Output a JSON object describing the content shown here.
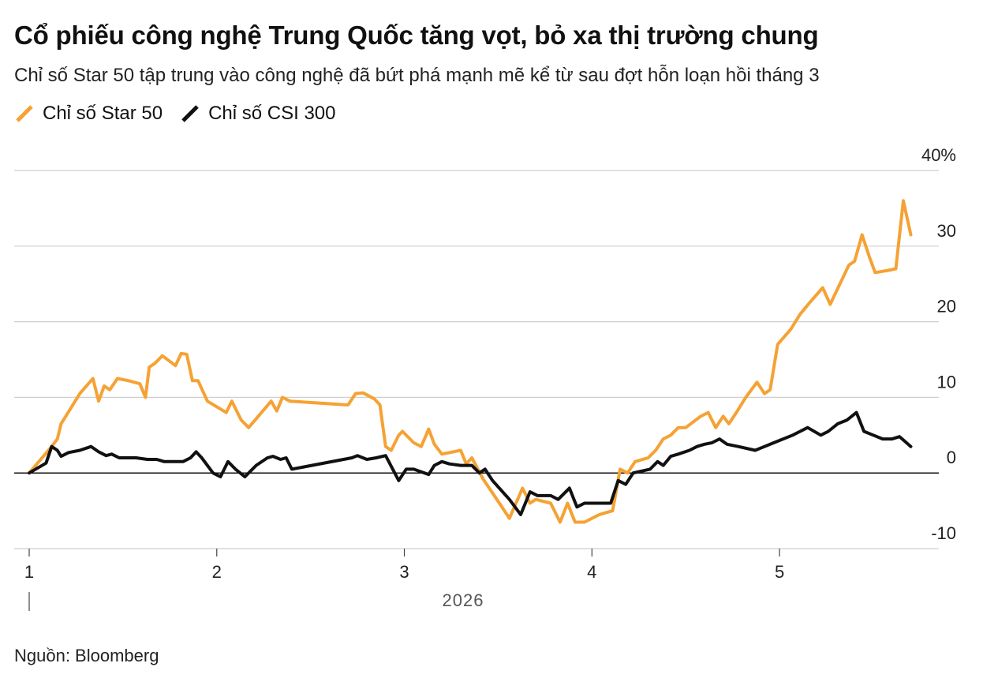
{
  "header": {
    "title": "Cổ phiếu công nghệ Trung Quốc tăng vọt, bỏ xa thị trường chung",
    "subtitle": "Chỉ số Star 50 tập trung vào công nghệ đã bứt phá mạnh mẽ kể từ sau đợt hỗn loạn hồi tháng 3"
  },
  "legend": {
    "star50": "Chỉ số Star 50",
    "csi300": "Chỉ số CSI 300"
  },
  "source": "Nguồn: Bloomberg",
  "colors": {
    "star50": "#f5a235",
    "csi300": "#111111",
    "grid": "#cfcfcf",
    "zero": "#111111"
  },
  "chart_data": {
    "type": "line",
    "title": "Cổ phiếu công nghệ Trung Quốc tăng vọt, bỏ xa thị trường chung",
    "xlabel": "2026",
    "ylabel": "",
    "x_range": [
      1.0,
      5.66
    ],
    "ylim": [
      -10,
      40
    ],
    "y_ticks": [
      40,
      30,
      20,
      10,
      0,
      -10
    ],
    "y_tick_labels": [
      "40%",
      "30",
      "20",
      "10",
      "0",
      "-10"
    ],
    "x_ticks": [
      1,
      2,
      3,
      4,
      5
    ],
    "x_tick_labels": [
      "1",
      "2",
      "3",
      "4",
      "5"
    ],
    "year_label": "2026",
    "grid": true,
    "legend_position": "top-left",
    "series": [
      {
        "name": "Chỉ số Star 50",
        "color": "#f5a235",
        "points": [
          [
            1.0,
            0
          ],
          [
            1.12,
            3.5
          ],
          [
            1.15,
            4.5
          ],
          [
            1.17,
            6.5
          ],
          [
            1.22,
            8.5
          ],
          [
            1.27,
            10.5
          ],
          [
            1.34,
            12.5
          ],
          [
            1.37,
            9.5
          ],
          [
            1.4,
            11.5
          ],
          [
            1.43,
            11
          ],
          [
            1.47,
            12.5
          ],
          [
            1.53,
            12.2
          ],
          [
            1.59,
            11.8
          ],
          [
            1.62,
            10
          ],
          [
            1.64,
            14
          ],
          [
            1.67,
            14.5
          ],
          [
            1.71,
            15.5
          ],
          [
            1.78,
            14.2
          ],
          [
            1.81,
            15.8
          ],
          [
            1.84,
            15.7
          ],
          [
            1.87,
            12.2
          ],
          [
            1.9,
            12.2
          ],
          [
            1.95,
            9.5
          ],
          [
            2.05,
            8
          ],
          [
            2.08,
            9.5
          ],
          [
            2.13,
            7
          ],
          [
            2.17,
            6
          ],
          [
            2.29,
            9.5
          ],
          [
            2.32,
            8.2
          ],
          [
            2.35,
            10
          ],
          [
            2.39,
            9.5
          ],
          [
            2.7,
            9
          ],
          [
            2.74,
            10.5
          ],
          [
            2.78,
            10.6
          ],
          [
            2.84,
            9.8
          ],
          [
            2.87,
            9
          ],
          [
            2.9,
            3.5
          ],
          [
            2.93,
            3
          ],
          [
            2.97,
            5
          ],
          [
            2.99,
            5.5
          ],
          [
            3.05,
            4
          ],
          [
            3.09,
            3.5
          ],
          [
            3.13,
            5.8
          ],
          [
            3.16,
            3.8
          ],
          [
            3.2,
            2.5
          ],
          [
            3.3,
            3
          ],
          [
            3.33,
            1.2
          ],
          [
            3.36,
            2
          ],
          [
            3.42,
            -0.8
          ],
          [
            3.52,
            -4.5
          ],
          [
            3.56,
            -6
          ],
          [
            3.63,
            -2
          ],
          [
            3.67,
            -4
          ],
          [
            3.7,
            -3.5
          ],
          [
            3.78,
            -4
          ],
          [
            3.83,
            -6.5
          ],
          [
            3.87,
            -4
          ],
          [
            3.91,
            -6.5
          ],
          [
            3.96,
            -6.5
          ],
          [
            4.04,
            -5.5
          ],
          [
            4.11,
            -5
          ],
          [
            4.15,
            0.5
          ],
          [
            4.19,
            0
          ],
          [
            4.23,
            1.5
          ],
          [
            4.3,
            2
          ],
          [
            4.34,
            3
          ],
          [
            4.38,
            4.5
          ],
          [
            4.42,
            5
          ],
          [
            4.46,
            6
          ],
          [
            4.5,
            6
          ],
          [
            4.58,
            7.5
          ],
          [
            4.62,
            8
          ],
          [
            4.66,
            6
          ],
          [
            4.7,
            7.5
          ],
          [
            4.73,
            6.5
          ],
          [
            4.77,
            8
          ],
          [
            4.82,
            10
          ],
          [
            4.88,
            12
          ],
          [
            4.92,
            10.5
          ],
          [
            4.95,
            11
          ],
          [
            4.99,
            17
          ],
          [
            5.06,
            19
          ],
          [
            5.11,
            21
          ],
          [
            5.16,
            22.5
          ],
          [
            5.23,
            24.5
          ],
          [
            5.27,
            22.3
          ],
          [
            5.37,
            27.5
          ],
          [
            5.4,
            28
          ],
          [
            5.44,
            31.5
          ],
          [
            5.48,
            28.5
          ],
          [
            5.51,
            26.5
          ],
          [
            5.58,
            26.8
          ],
          [
            5.62,
            27
          ],
          [
            5.66,
            36
          ],
          [
            5.7,
            31.5
          ]
        ]
      },
      {
        "name": "Chỉ số CSI 300",
        "color": "#111111",
        "points": [
          [
            1.0,
            0
          ],
          [
            1.09,
            1.3
          ],
          [
            1.12,
            3.5
          ],
          [
            1.15,
            3
          ],
          [
            1.17,
            2.2
          ],
          [
            1.21,
            2.7
          ],
          [
            1.27,
            3
          ],
          [
            1.33,
            3.5
          ],
          [
            1.37,
            2.8
          ],
          [
            1.41,
            2.3
          ],
          [
            1.44,
            2.5
          ],
          [
            1.48,
            2
          ],
          [
            1.57,
            2
          ],
          [
            1.63,
            1.8
          ],
          [
            1.68,
            1.8
          ],
          [
            1.72,
            1.5
          ],
          [
            1.82,
            1.5
          ],
          [
            1.86,
            2
          ],
          [
            1.89,
            2.8
          ],
          [
            1.92,
            2
          ],
          [
            1.98,
            0
          ],
          [
            2.02,
            -0.5
          ],
          [
            2.06,
            1.5
          ],
          [
            2.1,
            0.5
          ],
          [
            2.15,
            -0.5
          ],
          [
            2.21,
            1
          ],
          [
            2.27,
            2
          ],
          [
            2.3,
            2.2
          ],
          [
            2.34,
            1.8
          ],
          [
            2.37,
            2
          ],
          [
            2.4,
            0.5
          ],
          [
            2.72,
            2
          ],
          [
            2.75,
            2.3
          ],
          [
            2.8,
            1.8
          ],
          [
            2.85,
            2
          ],
          [
            2.9,
            2.3
          ],
          [
            2.97,
            -1
          ],
          [
            3.01,
            0.5
          ],
          [
            3.05,
            0.5
          ],
          [
            3.13,
            -0.2
          ],
          [
            3.16,
            1
          ],
          [
            3.2,
            1.5
          ],
          [
            3.24,
            1.2
          ],
          [
            3.3,
            1
          ],
          [
            3.36,
            1
          ],
          [
            3.4,
            0
          ],
          [
            3.43,
            0.5
          ],
          [
            3.47,
            -1
          ],
          [
            3.56,
            -3.5
          ],
          [
            3.62,
            -5.5
          ],
          [
            3.67,
            -2.5
          ],
          [
            3.71,
            -3
          ],
          [
            3.74,
            -3
          ],
          [
            3.78,
            -3
          ],
          [
            3.82,
            -3.5
          ],
          [
            3.88,
            -2
          ],
          [
            3.92,
            -4.5
          ],
          [
            3.96,
            -4
          ],
          [
            4.0,
            -4
          ],
          [
            4.1,
            -4
          ],
          [
            4.14,
            -1
          ],
          [
            4.18,
            -1.5
          ],
          [
            4.22,
            0
          ],
          [
            4.31,
            0.5
          ],
          [
            4.35,
            1.5
          ],
          [
            4.38,
            1
          ],
          [
            4.42,
            2.2
          ],
          [
            4.46,
            2.5
          ],
          [
            4.52,
            3
          ],
          [
            4.56,
            3.5
          ],
          [
            4.6,
            3.8
          ],
          [
            4.64,
            4
          ],
          [
            4.68,
            4.5
          ],
          [
            4.72,
            3.8
          ],
          [
            4.78,
            3.5
          ],
          [
            4.87,
            3
          ],
          [
            4.92,
            3.5
          ],
          [
            4.97,
            4
          ],
          [
            5.07,
            5
          ],
          [
            5.11,
            5.5
          ],
          [
            5.15,
            6
          ],
          [
            5.22,
            5
          ],
          [
            5.26,
            5.5
          ],
          [
            5.31,
            6.5
          ],
          [
            5.36,
            7
          ],
          [
            5.41,
            8
          ],
          [
            5.45,
            5.5
          ],
          [
            5.5,
            5
          ],
          [
            5.55,
            4.5
          ],
          [
            5.6,
            4.5
          ],
          [
            5.64,
            4.8
          ],
          [
            5.7,
            3.5
          ]
        ]
      }
    ]
  }
}
